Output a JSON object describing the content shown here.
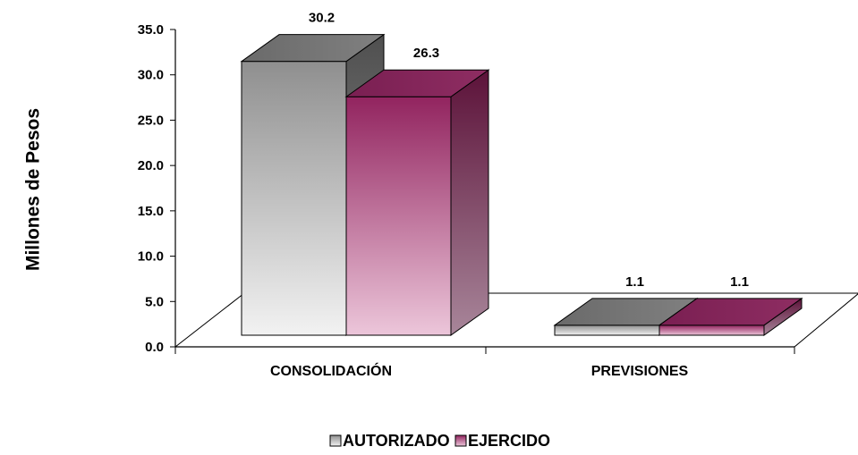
{
  "chart_data": {
    "type": "bar",
    "style": "3d-clustered-column",
    "ylabel": "Millones de Pesos",
    "ylim": [
      0,
      35
    ],
    "yticks": [
      "0.0",
      "5.0",
      "10.0",
      "15.0",
      "20.0",
      "25.0",
      "30.0",
      "35.0"
    ],
    "categories": [
      "CONSOLIDACIÓN",
      "PREVISIONES"
    ],
    "series": [
      {
        "name": "AUTORIZADO",
        "values": [
          30.2,
          1.1
        ],
        "labels": [
          "30.2",
          "1.1"
        ],
        "color": "#9a9a9a"
      },
      {
        "name": "EJERCIDO",
        "values": [
          26.3,
          1.1
        ],
        "labels": [
          "26.3",
          "1.1"
        ],
        "color": "#8e2d62"
      }
    ],
    "grid": false,
    "legend": "bottom"
  }
}
